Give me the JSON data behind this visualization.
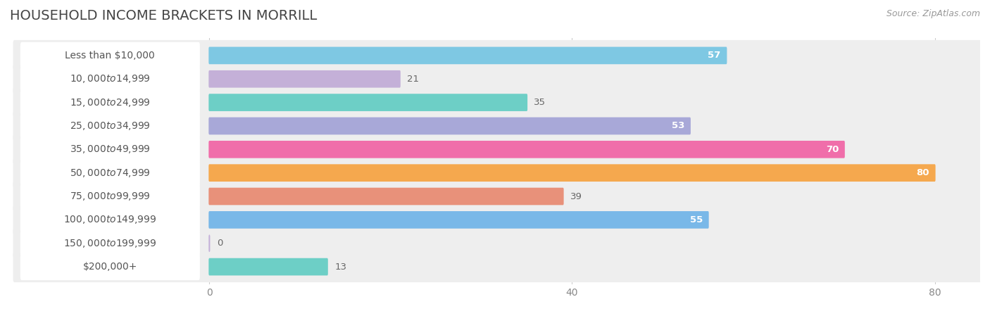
{
  "title": "HOUSEHOLD INCOME BRACKETS IN MORRILL",
  "source": "Source: ZipAtlas.com",
  "categories": [
    "Less than $10,000",
    "$10,000 to $14,999",
    "$15,000 to $24,999",
    "$25,000 to $34,999",
    "$35,000 to $49,999",
    "$50,000 to $74,999",
    "$75,000 to $99,999",
    "$100,000 to $149,999",
    "$150,000 to $199,999",
    "$200,000+"
  ],
  "values": [
    57,
    21,
    35,
    53,
    70,
    80,
    39,
    55,
    0,
    13
  ],
  "bar_colors": [
    "#7ec8e3",
    "#c4b0d8",
    "#6dcfc6",
    "#a8a8d8",
    "#f06eaa",
    "#f5a84e",
    "#e8917a",
    "#79b8e8",
    "#c4b0d8",
    "#6dcfc6"
  ],
  "value_inside": [
    true,
    false,
    false,
    true,
    true,
    true,
    false,
    true,
    false,
    false
  ],
  "xlim_max": 85,
  "xticks": [
    0,
    40,
    80
  ],
  "background_color": "#ffffff",
  "row_bg_color": "#eeeeee",
  "title_fontsize": 14,
  "label_fontsize": 10,
  "value_fontsize": 9.5,
  "source_fontsize": 9
}
